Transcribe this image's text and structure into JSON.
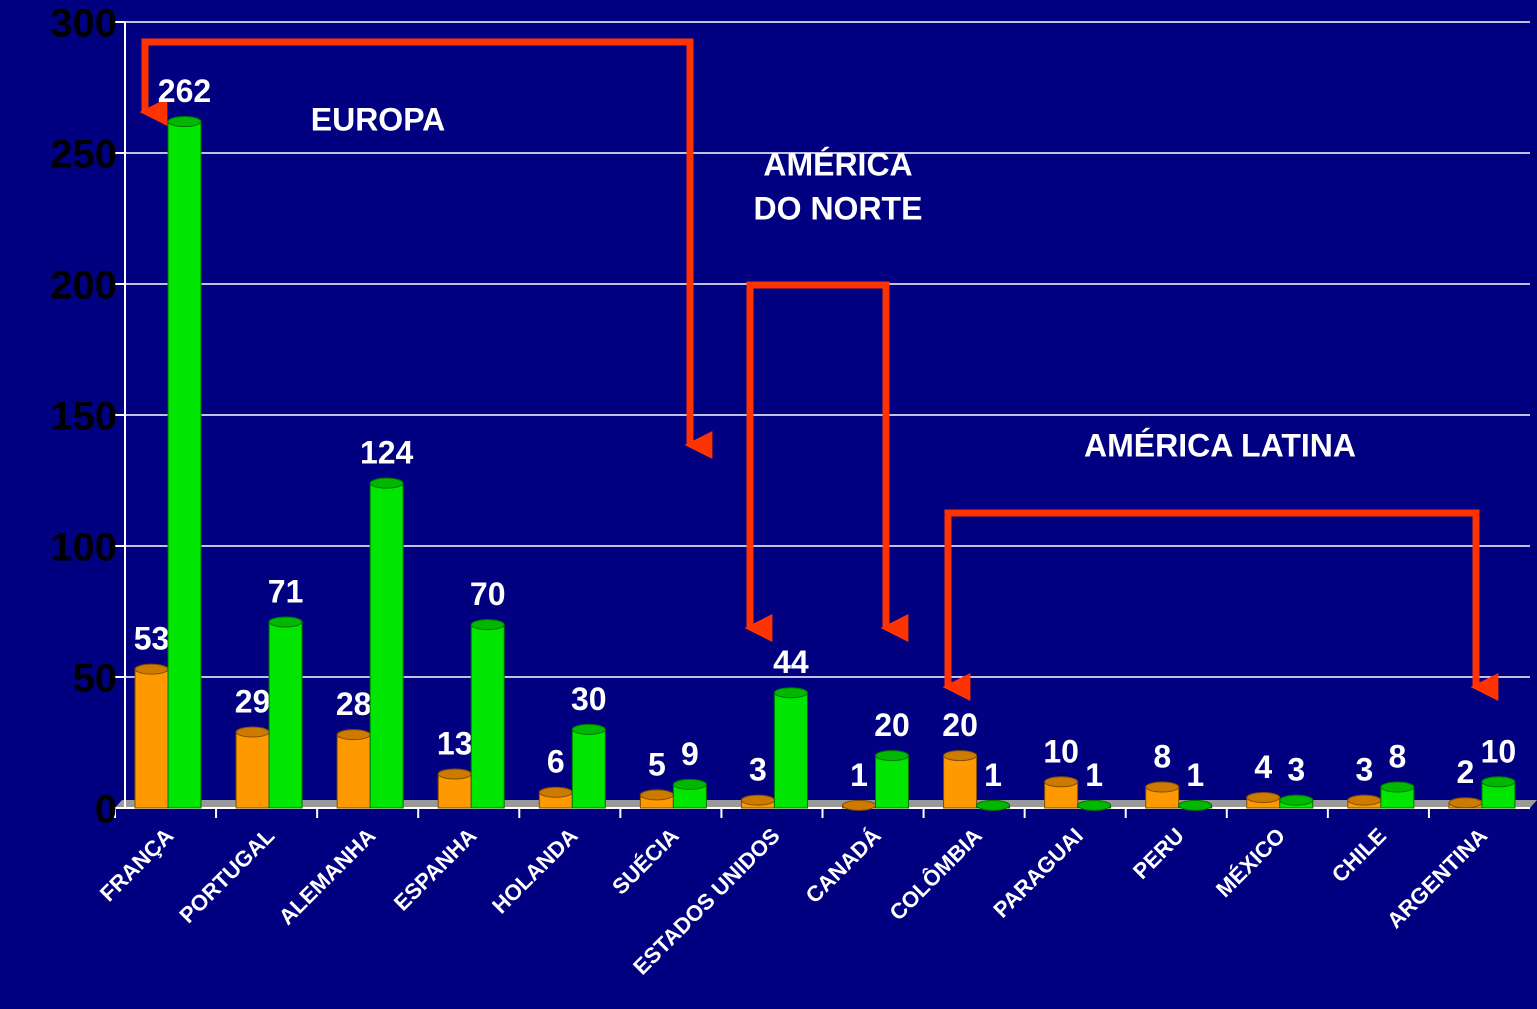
{
  "chart_data": {
    "type": "bar",
    "categories": [
      "FRANÇA",
      "PORTUGAL",
      "ALEMANHA",
      "ESPANHA",
      "HOLANDA",
      "SUÉCIA",
      "ESTADOS UNIDOS",
      "CANADÁ",
      "COLÔMBIA",
      "PARAGUAI",
      "PERU",
      "MÉXICO",
      "CHILE",
      "ARGENTINA"
    ],
    "series": [
      {
        "color": "#ff9900",
        "values": [
          53,
          29,
          28,
          13,
          6,
          5,
          3,
          1,
          20,
          10,
          8,
          4,
          3,
          2
        ]
      },
      {
        "color": "#00e600",
        "values": [
          262,
          71,
          124,
          70,
          30,
          9,
          44,
          20,
          1,
          1,
          1,
          3,
          8,
          10
        ]
      }
    ],
    "ylim": [
      0,
      300
    ],
    "yticks": [
      0,
      50,
      100,
      150,
      200,
      250,
      300
    ],
    "grid": true,
    "annotations": [
      [
        "EUROPA"
      ],
      [
        "AMÉRICA",
        "DO NORTE"
      ],
      [
        "AMÉRICA LATINA"
      ]
    ]
  }
}
